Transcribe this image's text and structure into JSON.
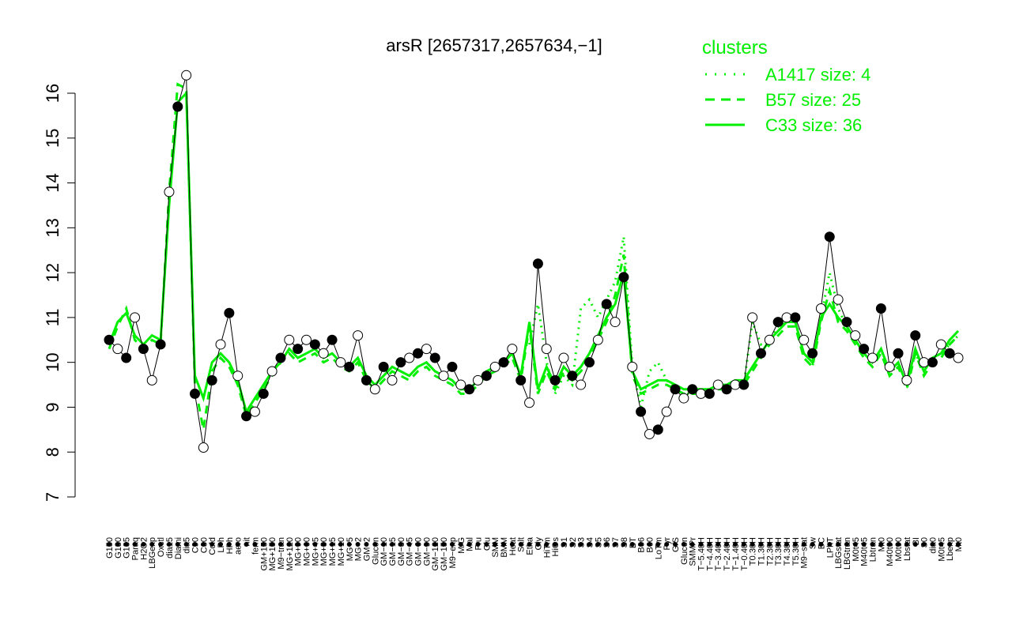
{
  "chart_data": {
    "type": "line",
    "title": "arsR [2657317,2657634,−1]",
    "ylim": [
      7,
      16.3
    ],
    "yticks": [
      7,
      8,
      9,
      10,
      11,
      12,
      13,
      14,
      15,
      16
    ],
    "legend": {
      "title": "clusters",
      "placement": "top-right",
      "entries": [
        {
          "label": "A1417 size: 4",
          "style": "dotted",
          "color": "#00ee00"
        },
        {
          "label": "B57 size: 25",
          "style": "dashed",
          "color": "#00ee00"
        },
        {
          "label": "C33 size: 36",
          "style": "solid",
          "color": "#00ee00"
        }
      ]
    },
    "x_tick_labels": [
      "G150",
      "G180",
      "G135",
      "Paraq",
      "H2O2",
      "LBGexp",
      "Oxctl",
      "dia15",
      "Diami",
      "dia5",
      "C90",
      "C30",
      "Cold",
      "LPh",
      "HPh",
      "aero",
      "nit",
      "ferm",
      "GM+150",
      "MG+150",
      "M9−tran",
      "MG+120",
      "MG+90",
      "MG+60",
      "MG+45",
      "MG+30",
      "MG+15",
      "MG+10",
      "MG+5",
      "MG−2",
      "GM−2",
      "Glucon",
      "GM−10",
      "GM−15",
      "GM−30",
      "GM−45",
      "GM−60",
      "GM−90",
      "GM−120",
      "GM−150",
      "M9−exp",
      "M/G",
      "Mal",
      "Fru",
      "Glu",
      "SMM",
      "BMM",
      "Heat",
      "Salt",
      "Etha",
      "Gly",
      "HiTm",
      "HiOs",
      "S1",
      "S2",
      "S3",
      "S4",
      "S5",
      "S6",
      "S7",
      "S8",
      "BT",
      "B36",
      "B60",
      "LoTm",
      "Pyr",
      "G/S",
      "Glucon",
      "SMMPr",
      "T−5.40H",
      "T−4.40H",
      "T−3.40H",
      "T−2.40H",
      "T−1.40H",
      "T−0.40H",
      "T0.30H",
      "T1.30H",
      "T2.30H",
      "T3.30H",
      "T4.30H",
      "T5.30H",
      "M9−stat",
      "Sw",
      "BC",
      "LPhT",
      "LBGstat",
      "LBGtran",
      "M0t45",
      "M40t45",
      "Lbtran",
      "Mt0",
      "M40t90",
      "M0t90",
      "Lbstat",
      "BI",
      "S0",
      "dia0",
      "M0t45",
      "Lbexp",
      "Mt0"
    ],
    "series": [
      {
        "style": "solid",
        "color": "#00ee00",
        "values": [
          10.4,
          10.9,
          11.1,
          10.6,
          10.4,
          10.6,
          10.5,
          13.5,
          15.8,
          16.0,
          9.7,
          9.2,
          10.0,
          10.2,
          10.0,
          9.6,
          8.9,
          9.2,
          9.5,
          9.8,
          10.0,
          10.3,
          10.1,
          10.2,
          10.3,
          10.1,
          10.2,
          10.0,
          9.9,
          10.1,
          9.7,
          9.5,
          9.7,
          9.9,
          9.8,
          9.7,
          9.9,
          10.0,
          9.8,
          9.7,
          9.6,
          9.4,
          9.4,
          9.6,
          9.8,
          9.9,
          10.0,
          10.2,
          9.7,
          10.9,
          9.4,
          9.9,
          9.5,
          9.9,
          9.7,
          9.9,
          10.2,
          10.6,
          11.0,
          11.3,
          12.0,
          9.8,
          9.4,
          9.5,
          9.6,
          9.6,
          9.5,
          9.4,
          9.4,
          9.4,
          9.4,
          9.5,
          9.5,
          9.6,
          9.6,
          9.9,
          10.2,
          10.5,
          10.7,
          10.9,
          10.9,
          10.2,
          10.0,
          11.0,
          11.3,
          11.0,
          10.8,
          10.5,
          10.2,
          10.0,
          10.3,
          9.8,
          10.0,
          9.5,
          10.3,
          9.8,
          10.1,
          10.2,
          10.5,
          10.7
        ]
      },
      {
        "style": "dashed",
        "color": "#00ee00",
        "values": [
          10.3,
          10.8,
          11.2,
          10.5,
          10.3,
          10.5,
          10.4,
          13.8,
          16.2,
          16.1,
          9.5,
          8.5,
          9.8,
          10.1,
          9.9,
          9.5,
          8.8,
          9.1,
          9.4,
          9.7,
          10.0,
          10.2,
          10.0,
          10.1,
          10.2,
          10.0,
          10.1,
          9.9,
          9.8,
          10.0,
          9.6,
          9.4,
          9.6,
          9.8,
          9.7,
          9.6,
          9.8,
          9.9,
          9.7,
          9.6,
          9.5,
          9.3,
          9.3,
          9.5,
          9.7,
          9.8,
          9.9,
          10.1,
          9.6,
          10.8,
          9.3,
          9.8,
          9.4,
          9.8,
          9.6,
          9.8,
          10.1,
          10.5,
          10.9,
          11.5,
          12.4,
          9.7,
          9.3,
          9.4,
          9.5,
          9.5,
          9.4,
          9.3,
          9.3,
          9.3,
          9.3,
          9.4,
          9.4,
          9.5,
          9.5,
          9.8,
          10.1,
          10.4,
          10.6,
          10.8,
          10.8,
          10.1,
          9.9,
          10.9,
          11.6,
          10.9,
          10.7,
          10.4,
          10.1,
          9.9,
          10.2,
          9.7,
          9.9,
          9.4,
          10.2,
          9.7,
          10.0,
          10.1,
          10.4,
          10.6
        ]
      },
      {
        "style": "dotted",
        "color": "#00ee00",
        "values": [
          null,
          null,
          null,
          null,
          null,
          null,
          null,
          null,
          null,
          null,
          null,
          null,
          null,
          null,
          null,
          null,
          null,
          null,
          null,
          null,
          null,
          null,
          null,
          null,
          null,
          null,
          null,
          null,
          null,
          null,
          null,
          null,
          null,
          null,
          null,
          null,
          null,
          null,
          null,
          null,
          null,
          null,
          null,
          null,
          null,
          null,
          null,
          null,
          null,
          10.4,
          11.3,
          10.0,
          9.3,
          9.7,
          9.5,
          11.2,
          11.4,
          11.0,
          11.4,
          11.8,
          12.8,
          9.9,
          9.0,
          9.8,
          10.0,
          9.6,
          9.4,
          9.3,
          9.3,
          9.3,
          9.3,
          9.4,
          9.4,
          9.5,
          9.5,
          10.9,
          10.4,
          10.5,
          10.8,
          10.9,
          11.0,
          10.1,
          9.9,
          11.0,
          12.0,
          11.2,
          10.8,
          10.5,
          10.2,
          10.0,
          10.3,
          9.7,
          10.0,
          9.5,
          10.2,
          9.8,
          10.1,
          10.2,
          10.4,
          10.6
        ]
      },
      {
        "style": "points",
        "color": "#000000",
        "values": [
          10.5,
          10.3,
          10.1,
          11.0,
          10.3,
          9.6,
          10.4,
          13.8,
          15.7,
          16.4,
          9.3,
          8.1,
          9.6,
          10.4,
          11.1,
          9.7,
          8.8,
          8.9,
          9.3,
          9.8,
          10.1,
          10.5,
          10.3,
          10.5,
          10.4,
          10.2,
          10.5,
          10.0,
          9.9,
          10.6,
          9.6,
          9.4,
          9.9,
          9.6,
          10.0,
          10.1,
          10.2,
          10.3,
          10.1,
          9.7,
          9.9,
          9.5,
          9.4,
          9.6,
          9.7,
          9.9,
          10.0,
          10.3,
          9.6,
          9.1,
          12.2,
          10.3,
          9.6,
          10.1,
          9.7,
          9.5,
          10.0,
          10.5,
          11.3,
          10.9,
          11.9,
          9.9,
          8.9,
          8.4,
          8.5,
          8.9,
          9.4,
          9.2,
          9.4,
          9.3,
          9.3,
          9.5,
          9.4,
          9.5,
          9.5,
          11.0,
          10.2,
          10.5,
          10.9,
          11.0,
          11.0,
          10.5,
          10.2,
          11.2,
          12.8,
          11.4,
          10.9,
          10.6,
          10.3,
          10.1,
          11.2,
          9.9,
          10.2,
          9.6,
          10.6,
          10.0,
          10.0,
          10.4,
          10.2,
          10.1
        ]
      }
    ]
  }
}
